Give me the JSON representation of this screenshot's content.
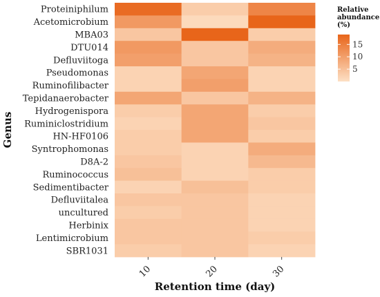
{
  "chart_data": {
    "type": "heatmap",
    "xlabel": "Retention time (day)",
    "ylabel": "Genus",
    "x": [
      "10",
      "20",
      "30"
    ],
    "y": [
      "Proteiniphilum",
      "Acetomicrobium",
      "MBA03",
      "DTU014",
      "Defluviitoga",
      "Pseudomonas",
      "Ruminofilibacter",
      "Tepidanaerobacter",
      "Hydrogenispora",
      "Ruminiclostridium",
      "HN-HF0106",
      "Syntrophomonas",
      "D8A-2",
      "Ruminococcus",
      "Sedimentibacter",
      "Defluviitalea",
      "uncultured",
      "Herbinix",
      "Lentimicrobium",
      "SBR1031"
    ],
    "values": [
      [
        18,
        3,
        14
      ],
      [
        11,
        1,
        19
      ],
      [
        4,
        19,
        3
      ],
      [
        11,
        4,
        8
      ],
      [
        10,
        4,
        7
      ],
      [
        2,
        9,
        2
      ],
      [
        2,
        10,
        2
      ],
      [
        9,
        4,
        7
      ],
      [
        3,
        9,
        3
      ],
      [
        2,
        9,
        4
      ],
      [
        3,
        9,
        3
      ],
      [
        3,
        2,
        8
      ],
      [
        4,
        2,
        6
      ],
      [
        5,
        2,
        3
      ],
      [
        2,
        5,
        3
      ],
      [
        4,
        4,
        2
      ],
      [
        3,
        4,
        2
      ],
      [
        4,
        4,
        2
      ],
      [
        4,
        4,
        3
      ],
      [
        3,
        4,
        2
      ]
    ],
    "colorscale": [
      "#fde0c5",
      "#e8651a"
    ],
    "zlim": [
      0,
      19
    ],
    "legend": {
      "title_lines": [
        "Relative",
        "abundance",
        "(%)"
      ],
      "ticks": [
        5,
        10,
        15
      ],
      "placement": "right"
    }
  }
}
